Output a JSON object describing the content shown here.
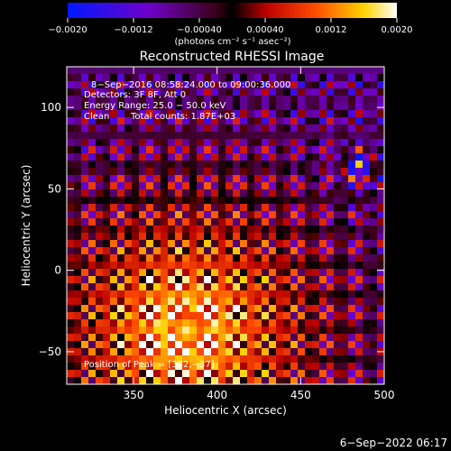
{
  "chart_data": {
    "type": "heatmap",
    "title": "Reconstructed RHESSI Image",
    "xlabel": "Heliocentric X (arcsec)",
    "ylabel": "Heliocentric Y (arcsec)",
    "xlim": [
      310,
      500
    ],
    "ylim": [
      -70,
      125
    ],
    "xticks": [
      350,
      400,
      450,
      500
    ],
    "yticks": [
      -50,
      0,
      50,
      100
    ],
    "x_tick_labels": [
      "350",
      "400",
      "450",
      "500"
    ],
    "y_tick_labels": [
      "−50",
      "0",
      "50",
      "100"
    ],
    "colorbar": {
      "range": [
        -0.002,
        0.002
      ],
      "ticks": [
        -0.002,
        -0.0012,
        -0.0004,
        0.0004,
        0.0012,
        0.002
      ],
      "tick_labels": [
        "−0.0020",
        "−0.0012",
        "−0.00040",
        "0.00040",
        "0.0012",
        "0.0020"
      ],
      "units_label": "(photons cm⁻² s⁻¹ asec⁻²)"
    },
    "annotations": {
      "time_range": "8−Sep−2016 08:58:24.000 to 09:00:36.000",
      "detectors": "Detectors: 3F 8F, Att 0",
      "energy_range": "Energy Range: 25.0 − 50.0 keV",
      "clean": "Clean",
      "total_counts": "Total counts: 1.87E+03",
      "peak": "Position of Peak = [382,−37]"
    },
    "peak_position": [
      382,
      -37
    ],
    "footer_timestamp": "6−Sep−2022 06:17"
  }
}
